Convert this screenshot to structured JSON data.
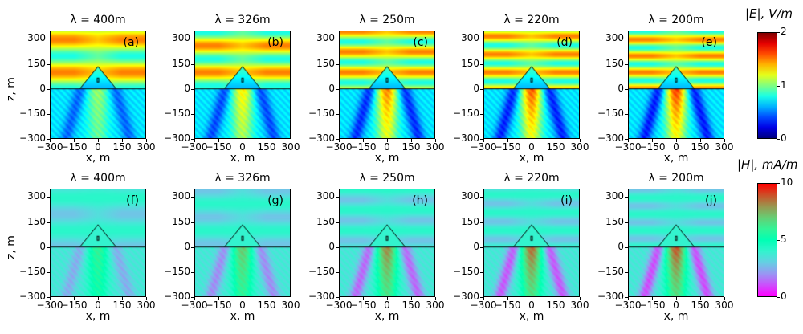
{
  "chart_data": [
    {
      "type": "heatmap",
      "row": "E",
      "quantity": "|E|",
      "xlabel": "x, m",
      "ylabel": "z, m",
      "xlim": [
        -300,
        300
      ],
      "ylim": [
        -300,
        350
      ],
      "xticks": [
        "−300",
        "−150",
        "0",
        "150",
        "300"
      ],
      "yticks": [
        "300",
        "150",
        "0",
        "−150",
        "−300"
      ],
      "colormap": "jet",
      "colorbar": {
        "label": "|E|, V/m",
        "range": [
          0,
          2
        ],
        "ticks": [
          "0",
          "1",
          "2"
        ]
      },
      "panels": [
        {
          "label": "(a)",
          "title": "λ = 400m",
          "wavelength_m": 400
        },
        {
          "label": "(b)",
          "title": "λ = 326m",
          "wavelength_m": 326
        },
        {
          "label": "(c)",
          "title": "λ = 250m",
          "wavelength_m": 250
        },
        {
          "label": "(d)",
          "title": "λ = 220m",
          "wavelength_m": 220
        },
        {
          "label": "(e)",
          "title": "λ = 200m",
          "wavelength_m": 200
        }
      ]
    },
    {
      "type": "heatmap",
      "row": "H",
      "quantity": "|H|",
      "xlabel": "x, m",
      "ylabel": "z, m",
      "xlim": [
        -300,
        300
      ],
      "ylim": [
        -300,
        350
      ],
      "xticks": [
        "−300",
        "−150",
        "0",
        "150",
        "300"
      ],
      "yticks": [
        "300",
        "150",
        "0",
        "−150",
        "−300"
      ],
      "colormap": "rainbow",
      "colorbar": {
        "label": "|H|, mA/m",
        "range": [
          0,
          10
        ],
        "ticks": [
          "0",
          "5",
          "10"
        ]
      },
      "panels": [
        {
          "label": "(f)",
          "title": "λ = 400m",
          "wavelength_m": 400
        },
        {
          "label": "(g)",
          "title": "λ = 326m",
          "wavelength_m": 326
        },
        {
          "label": "(h)",
          "title": "λ = 250m",
          "wavelength_m": 250
        },
        {
          "label": "(i)",
          "title": "λ = 220m",
          "wavelength_m": 220
        },
        {
          "label": "(j)",
          "title": "λ = 200m",
          "wavelength_m": 200
        }
      ]
    }
  ]
}
